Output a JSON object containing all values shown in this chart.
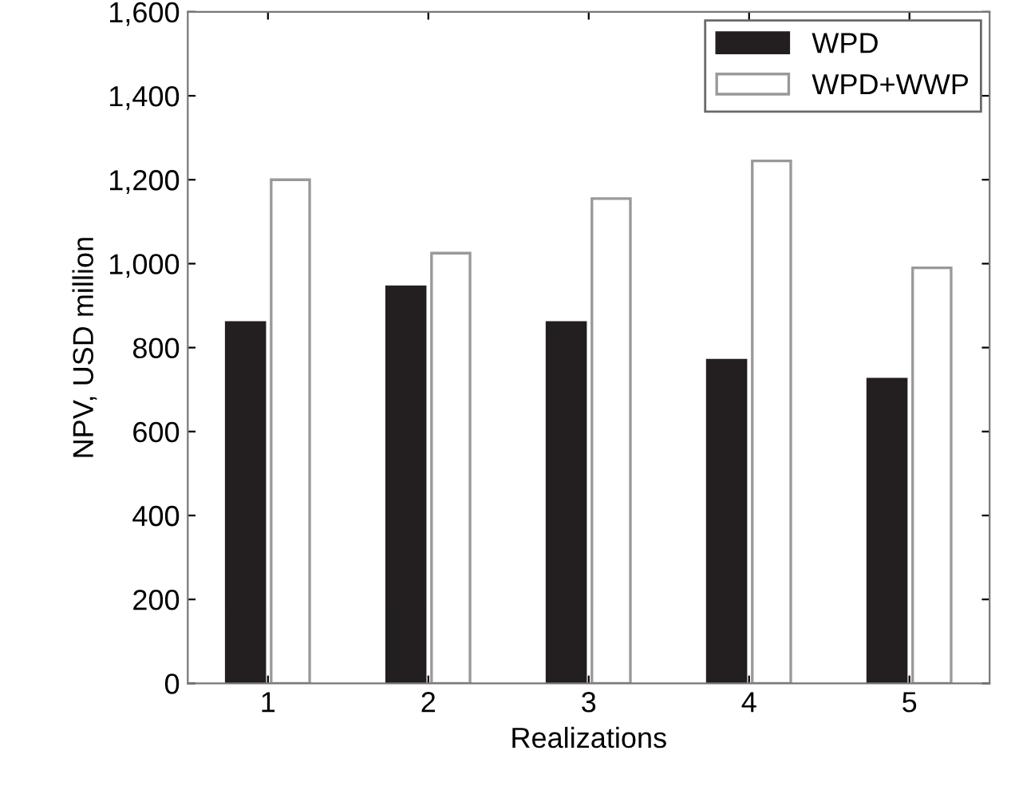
{
  "chart_data": {
    "type": "bar",
    "xlabel": "Realizations",
    "ylabel": "NPV, USD million",
    "categories": [
      "1",
      "2",
      "3",
      "4",
      "5"
    ],
    "series": [
      {
        "name": "WPD",
        "color": "#231f20",
        "values": [
          860,
          945,
          860,
          770,
          725
        ]
      },
      {
        "name": "WPD+WWP",
        "color": "#ffffff",
        "values": [
          1200,
          1025,
          1155,
          1245,
          990
        ]
      }
    ],
    "ylim": [
      0,
      1600
    ],
    "yticks": [
      {
        "value": 0,
        "label": "0"
      },
      {
        "value": 200,
        "label": "200"
      },
      {
        "value": 400,
        "label": "400"
      },
      {
        "value": 600,
        "label": "600"
      },
      {
        "value": 800,
        "label": "800"
      },
      {
        "value": 1000,
        "label": "1,000"
      },
      {
        "value": 1200,
        "label": "1,200"
      },
      {
        "value": 1400,
        "label": "1,400"
      },
      {
        "value": 1600,
        "label": "1,600"
      }
    ],
    "grid": false,
    "legend": "top right"
  }
}
